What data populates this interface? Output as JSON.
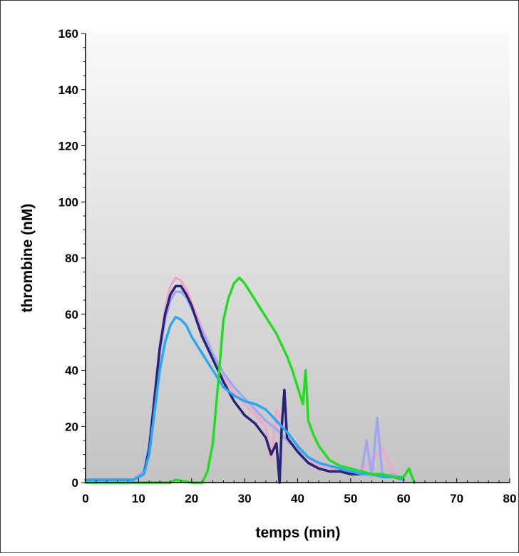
{
  "chart_data": {
    "type": "line",
    "title": "",
    "xlabel": "temps (min)",
    "ylabel": "thrombine (nM)",
    "xlim": [
      0,
      80
    ],
    "ylim": [
      0,
      160
    ],
    "x_ticks": [
      "0",
      "10",
      "20",
      "30",
      "40",
      "50",
      "60",
      "70",
      "80"
    ],
    "y_ticks": [
      "0",
      "20",
      "40",
      "60",
      "80",
      "100",
      "120",
      "140",
      "160"
    ],
    "grid": false,
    "legend": "none",
    "plot_background": "light-gray vertical gradient",
    "series": [
      {
        "color": "#f4a6c6",
        "x": [
          0,
          9,
          11,
          12,
          13,
          14,
          15,
          16,
          17,
          18,
          19,
          20,
          22,
          24,
          26,
          28,
          30,
          32,
          34,
          35,
          36,
          38,
          40,
          42,
          44,
          46,
          48,
          50,
          52,
          54,
          56,
          58,
          60
        ],
        "y": [
          1,
          1,
          4,
          14,
          32,
          48,
          62,
          70,
          73,
          72,
          69,
          64,
          55,
          46,
          38,
          32,
          28,
          24,
          20,
          8,
          26,
          18,
          12,
          8,
          6,
          5,
          4,
          3,
          5,
          8,
          12,
          4,
          1
        ]
      },
      {
        "color": "#a0a8f0",
        "x": [
          0,
          9,
          11,
          12,
          13,
          14,
          15,
          16,
          17,
          18,
          19,
          20,
          22,
          24,
          26,
          28,
          30,
          32,
          34,
          36,
          38,
          40,
          42,
          44,
          46,
          48,
          50,
          52,
          53,
          54,
          55,
          56,
          58,
          60
        ],
        "y": [
          1,
          1,
          4,
          14,
          30,
          46,
          58,
          65,
          68,
          68,
          66,
          62,
          54,
          46,
          39,
          34,
          30,
          26,
          22,
          19,
          15,
          12,
          9,
          7,
          6,
          5,
          4,
          3,
          15,
          2,
          23,
          2,
          3,
          1
        ]
      },
      {
        "color": "#26247a",
        "x": [
          0,
          9,
          11,
          12,
          13,
          14,
          15,
          16,
          17,
          18,
          19,
          20,
          22,
          24,
          26,
          28,
          30,
          32,
          34,
          35,
          36,
          36.6,
          37,
          37.5,
          38,
          40,
          42,
          44,
          46,
          48,
          50,
          52,
          54,
          56,
          58,
          60
        ],
        "y": [
          1,
          1,
          3,
          12,
          30,
          48,
          60,
          67,
          70,
          70,
          67,
          63,
          52,
          44,
          36,
          29,
          24,
          21,
          16,
          10,
          14,
          0,
          20,
          33,
          16,
          11,
          7,
          5,
          4,
          4,
          3,
          3,
          3,
          2,
          2,
          1
        ]
      },
      {
        "color": "#2aa8f2",
        "x": [
          0,
          9,
          11,
          12,
          13,
          14,
          15,
          16,
          17,
          18,
          19,
          20,
          22,
          24,
          26,
          28,
          30,
          32,
          34,
          36,
          38,
          40,
          42,
          44,
          46,
          48,
          50,
          52,
          54,
          56,
          58,
          60
        ],
        "y": [
          1,
          1,
          3,
          10,
          25,
          40,
          50,
          56,
          59,
          58,
          56,
          52,
          46,
          40,
          34,
          31,
          29,
          28,
          26,
          22,
          18,
          13,
          9,
          7,
          6,
          5,
          4,
          3,
          3,
          2,
          2,
          1
        ]
      },
      {
        "color": "#22dd22",
        "x": [
          0,
          16,
          17,
          20,
          22,
          23,
          24,
          25,
          26,
          27,
          28,
          29,
          30,
          31,
          32,
          33,
          34,
          36,
          38,
          39,
          40,
          41,
          41.5,
          42,
          43,
          44,
          46,
          48,
          50,
          52,
          54,
          56,
          58,
          60,
          61,
          62
        ],
        "y": [
          0,
          0,
          1,
          0,
          0,
          4,
          14,
          35,
          58,
          66,
          71,
          73,
          71,
          68,
          65,
          62,
          59,
          53,
          45,
          40,
          34,
          28,
          40,
          22,
          17,
          13,
          8,
          6,
          5,
          4,
          3,
          3,
          2,
          2,
          5,
          0
        ]
      }
    ]
  }
}
